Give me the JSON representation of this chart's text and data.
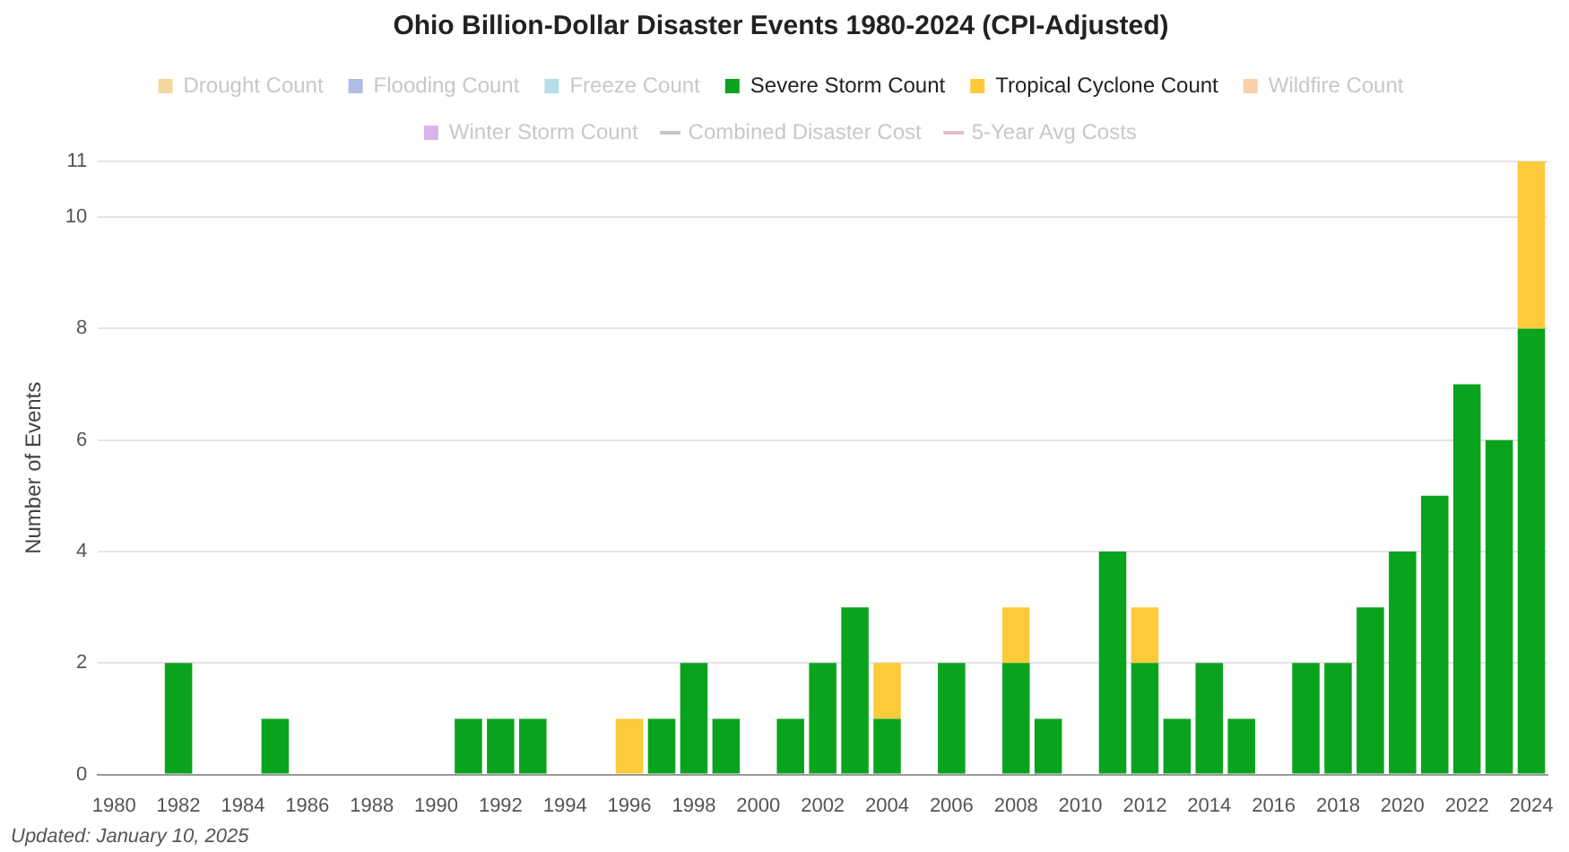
{
  "chart_data": {
    "type": "bar",
    "title": "Ohio Billion-Dollar Disaster Events 1980-2024 (CPI-Adjusted)",
    "ylabel": "Number of Events",
    "stacked": true,
    "legend": "top",
    "grid": "y",
    "categories": [
      "1980",
      null,
      "1982",
      null,
      "1984",
      null,
      "1986",
      null,
      "1988",
      null,
      "1990",
      null,
      "1992",
      null,
      "1994",
      null,
      "1996",
      null,
      "1998",
      null,
      "2000",
      null,
      "2002",
      null,
      "2004",
      null,
      "2006",
      null,
      "2008",
      null,
      "2010",
      null,
      "2012",
      null,
      "2014",
      null,
      "2016",
      null,
      "2018",
      null,
      "2020",
      null,
      "2022",
      null,
      "2024"
    ],
    "ylim": [
      0,
      11
    ],
    "yticks": [
      0,
      2,
      4,
      6,
      8,
      10,
      11
    ],
    "series": [
      {
        "name": "Drought Count",
        "color": "#f6d7a0",
        "values": [
          null,
          null,
          null,
          null,
          null,
          null,
          null,
          null,
          null,
          null,
          null,
          null,
          null,
          null,
          null,
          null,
          null,
          null,
          null,
          null,
          null,
          null,
          null,
          null,
          null,
          null,
          null,
          null,
          null,
          null,
          null,
          null,
          null,
          null,
          null,
          null,
          null,
          null,
          null,
          null,
          null,
          null,
          null,
          null,
          null
        ]
      },
      {
        "name": "Flooding Count",
        "color": "#aebce6",
        "values": [
          null,
          null,
          null,
          null,
          null,
          null,
          null,
          null,
          null,
          null,
          null,
          null,
          null,
          null,
          null,
          null,
          null,
          null,
          null,
          null,
          null,
          null,
          null,
          null,
          null,
          null,
          null,
          null,
          null,
          null,
          null,
          null,
          null,
          null,
          null,
          null,
          null,
          null,
          null,
          null,
          null,
          null,
          null,
          null,
          null
        ]
      },
      {
        "name": "Freeze Count",
        "color": "#b3dde8",
        "values": [
          null,
          null,
          null,
          null,
          null,
          null,
          null,
          null,
          null,
          null,
          null,
          null,
          null,
          null,
          null,
          null,
          null,
          null,
          null,
          null,
          null,
          null,
          null,
          null,
          null,
          null,
          null,
          null,
          null,
          null,
          null,
          null,
          null,
          null,
          null,
          null,
          null,
          null,
          null,
          null,
          null,
          null,
          null,
          null,
          null
        ]
      },
      {
        "name": "Severe Storm Count",
        "color": "#0aa31e",
        "values": [
          0,
          0,
          2,
          0,
          0,
          1,
          0,
          0,
          0,
          0,
          0,
          1,
          1,
          1,
          0,
          0,
          0,
          1,
          2,
          1,
          0,
          1,
          2,
          3,
          1,
          0,
          2,
          0,
          2,
          1,
          0,
          4,
          2,
          1,
          2,
          1,
          0,
          2,
          2,
          3,
          4,
          5,
          7,
          6,
          8
        ]
      },
      {
        "name": "Tropical Cyclone Count",
        "color": "#fdcb3a",
        "values": [
          0,
          0,
          0,
          0,
          0,
          0,
          0,
          0,
          0,
          0,
          0,
          0,
          0,
          0,
          0,
          0,
          1,
          0,
          0,
          0,
          0,
          0,
          0,
          0,
          1,
          0,
          0,
          0,
          1,
          0,
          0,
          0,
          1,
          0,
          0,
          0,
          0,
          0,
          0,
          0,
          0,
          0,
          0,
          0,
          3
        ]
      },
      {
        "name": "Wildfire Count",
        "color": "#f7cfa8",
        "values": [
          null,
          null,
          null,
          null,
          null,
          null,
          null,
          null,
          null,
          null,
          null,
          null,
          null,
          null,
          null,
          null,
          null,
          null,
          null,
          null,
          null,
          null,
          null,
          null,
          null,
          null,
          null,
          null,
          null,
          null,
          null,
          null,
          null,
          null,
          null,
          null,
          null,
          null,
          null,
          null,
          null,
          null,
          null,
          null,
          null
        ]
      },
      {
        "name": "Winter Storm Count",
        "color": "#d9b3ea",
        "values": [
          null,
          null,
          null,
          null,
          null,
          null,
          null,
          null,
          null,
          null,
          null,
          null,
          null,
          null,
          null,
          null,
          null,
          null,
          null,
          null,
          null,
          null,
          null,
          null,
          null,
          null,
          null,
          null,
          null,
          null,
          null,
          null,
          null,
          null,
          null,
          null,
          null,
          null,
          null,
          null,
          null,
          null,
          null,
          null,
          null
        ]
      },
      {
        "name": "Combined Disaster Cost",
        "type": "line",
        "color": "#c4c4c4",
        "values": [
          null,
          null,
          null,
          null,
          null,
          null,
          null,
          null,
          null,
          null,
          null,
          null,
          null,
          null,
          null,
          null,
          null,
          null,
          null,
          null,
          null,
          null,
          null,
          null,
          null,
          null,
          null,
          null,
          null,
          null,
          null,
          null,
          null,
          null,
          null,
          null,
          null,
          null,
          null,
          null,
          null,
          null,
          null,
          null,
          null
        ]
      },
      {
        "name": "5-Year Avg Costs",
        "type": "line",
        "color": "#e2bccb",
        "values": [
          null,
          null,
          null,
          null,
          null,
          null,
          null,
          null,
          null,
          null,
          null,
          null,
          null,
          null,
          null,
          null,
          null,
          null,
          null,
          null,
          null,
          null,
          null,
          null,
          null,
          null,
          null,
          null,
          null,
          null,
          null,
          null,
          null,
          null,
          null,
          null,
          null,
          null,
          null,
          null,
          null,
          null,
          null,
          null,
          null
        ]
      }
    ],
    "annotations": [
      "Updated: January 10, 2025"
    ]
  }
}
